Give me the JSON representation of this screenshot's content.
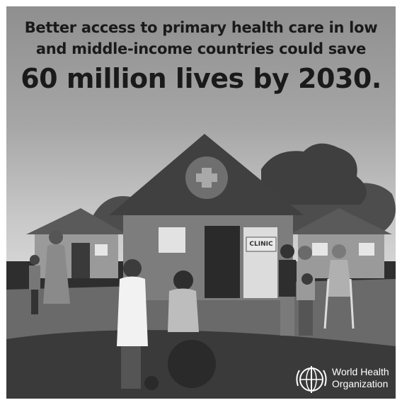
{
  "headline": {
    "line1": "Better access to primary health care in low",
    "line2": "and middle-income countries could save",
    "line3": "60 million lives by 2030."
  },
  "clinic": {
    "sign": "CLINIC"
  },
  "logo": {
    "name_line1": "World Health",
    "name_line2": "Organization",
    "icon": "who-emblem-icon"
  }
}
